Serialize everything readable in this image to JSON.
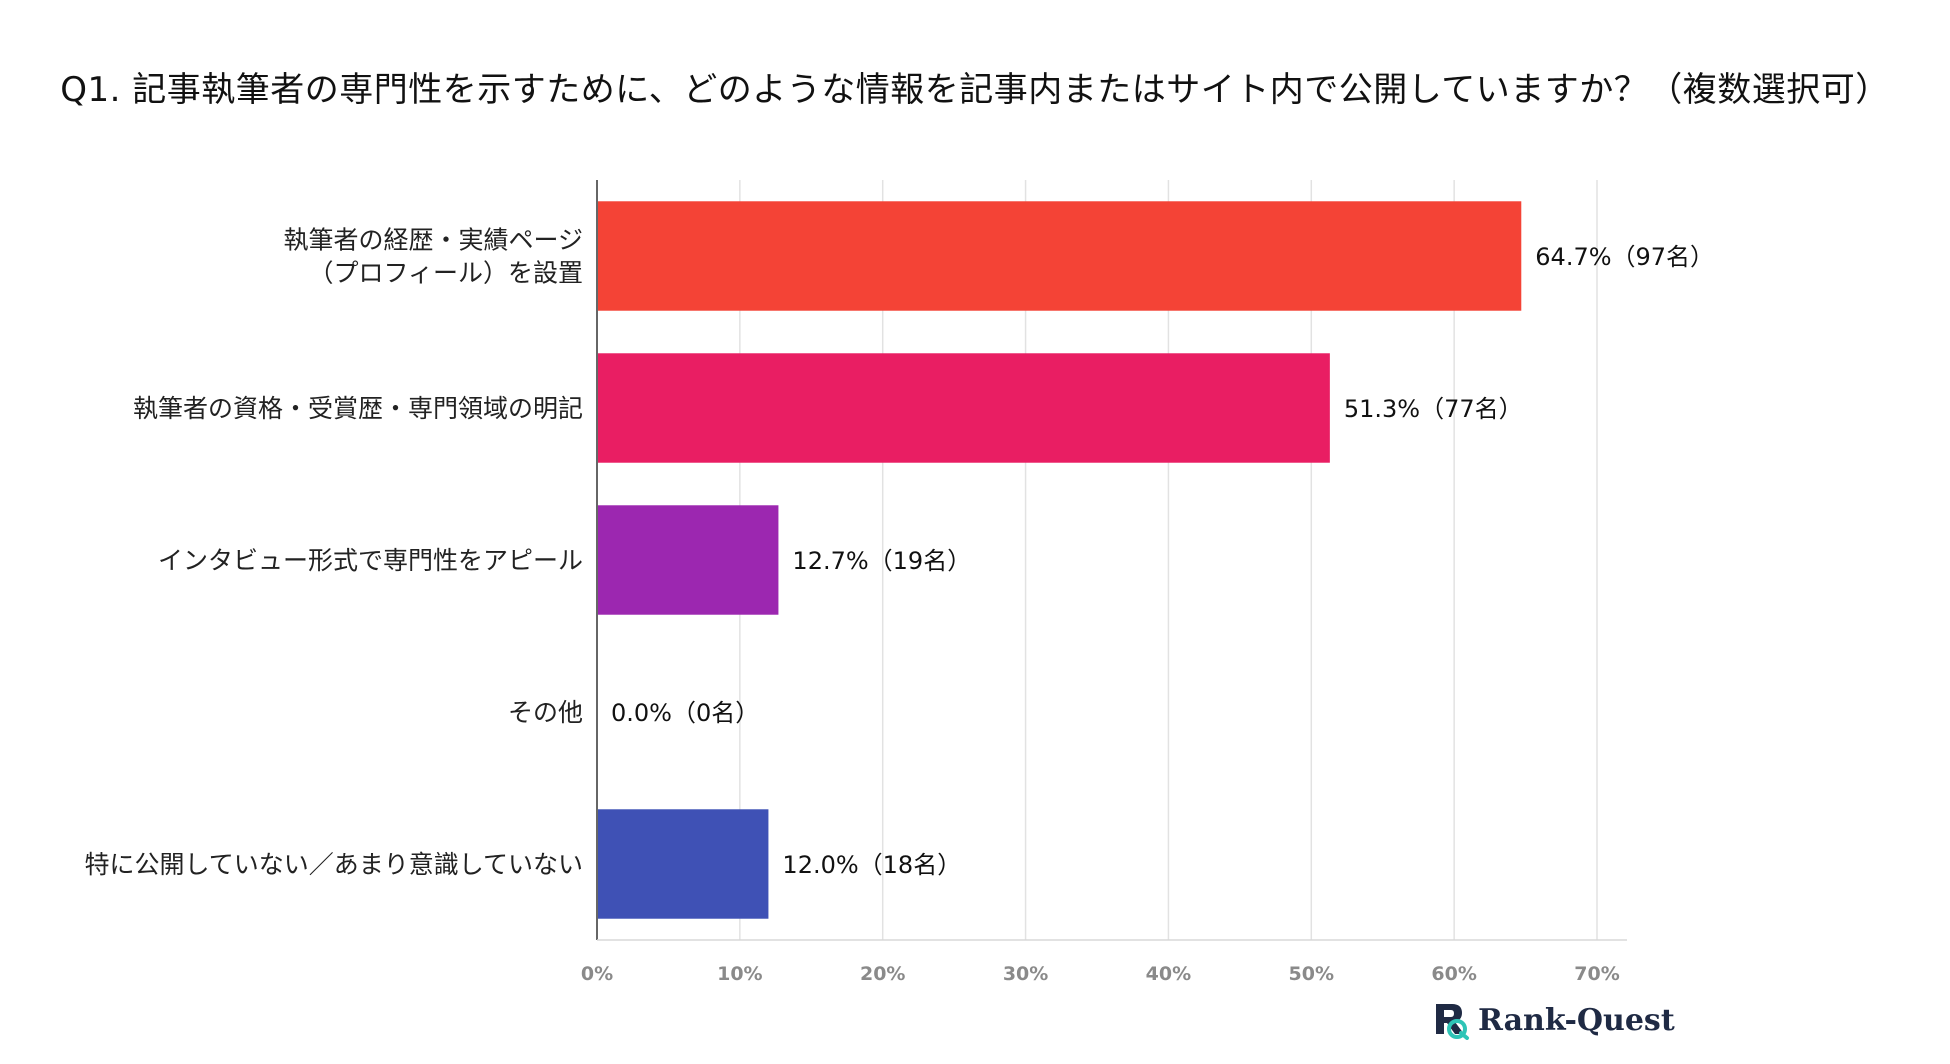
{
  "chart_data": {
    "type": "bar",
    "orientation": "horizontal",
    "title": "Q1. 記事執筆者の専門性を示すために、どのような情報を記事内またはサイト内で公開していますか？（複数選択可）",
    "categories": [
      [
        "執筆者の経歴・実績ページ",
        "（プロフィール）を設置"
      ],
      [
        "執筆者の資格・受賞歴・専門領域の明記"
      ],
      [
        "インタビュー形式で専門性をアピール"
      ],
      [
        "その他"
      ],
      [
        "特に公開していない／あまり意識していない"
      ]
    ],
    "values": [
      64.7,
      51.3,
      12.7,
      0.0,
      12.0
    ],
    "value_labels": [
      "64.7%（97名）",
      "51.3%（77名）",
      "12.7%（19名）",
      "0.0%（0名）",
      "12.0%（18名）"
    ],
    "colors": [
      "#f44336",
      "#e91e63",
      "#9c27b0",
      "#673ab7",
      "#3f51b5"
    ],
    "xlim": [
      0,
      70
    ],
    "ticks": [
      0,
      10,
      20,
      30,
      40,
      50,
      60,
      70
    ],
    "tick_labels": [
      "0%",
      "10%",
      "20%",
      "30%",
      "40%",
      "50%",
      "60%",
      "70%"
    ],
    "grid": true,
    "xlabel": "",
    "ylabel": ""
  },
  "brand": {
    "logo_text": "Rank-Quest",
    "logo_icon": "rank-quest-logo-icon",
    "logo_color": "#1f2a44",
    "logo_accent": "#2ec4b6"
  }
}
